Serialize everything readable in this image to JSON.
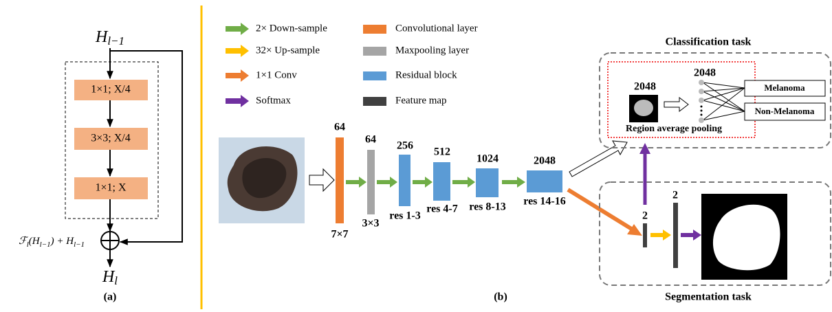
{
  "panel_a": {
    "input": {
      "main": "H",
      "sub": "l−1"
    },
    "blocks": [
      "1×1; X/4",
      "3×3; X/4",
      "1×1; X"
    ],
    "formula": [
      "ℱ",
      "l",
      "(H",
      "l−1",
      ") + H",
      "l−1"
    ],
    "output": {
      "main": "H",
      "sub": "l"
    },
    "caption": "(a)"
  },
  "panel_b": {
    "legend": {
      "arrows": [
        "2× Down-sample",
        "32× Up-sample",
        "1×1 Conv",
        "Softmax"
      ],
      "layers": [
        "Convolutional layer",
        "Maxpooling layer",
        "Residual block",
        "Feature map"
      ]
    },
    "pipeline": {
      "top_labels": [
        "64",
        "64",
        "256",
        "512",
        "1024",
        "2048"
      ],
      "bottom_labels": [
        "7×7",
        "3×3",
        "res 1-3",
        "res 4-7",
        "res 8-13",
        "res 14-16"
      ]
    },
    "classification": {
      "title": "Classification task",
      "pool_channels": "2048",
      "pool_label": "Region average pooling",
      "fc_channels": "2048",
      "classes": [
        "Melanoma",
        "Non-Melanoma"
      ]
    },
    "segmentation": {
      "title": "Segmentation task",
      "map1_channels": "2",
      "map2_channels": "2"
    },
    "caption": "(b)"
  }
}
